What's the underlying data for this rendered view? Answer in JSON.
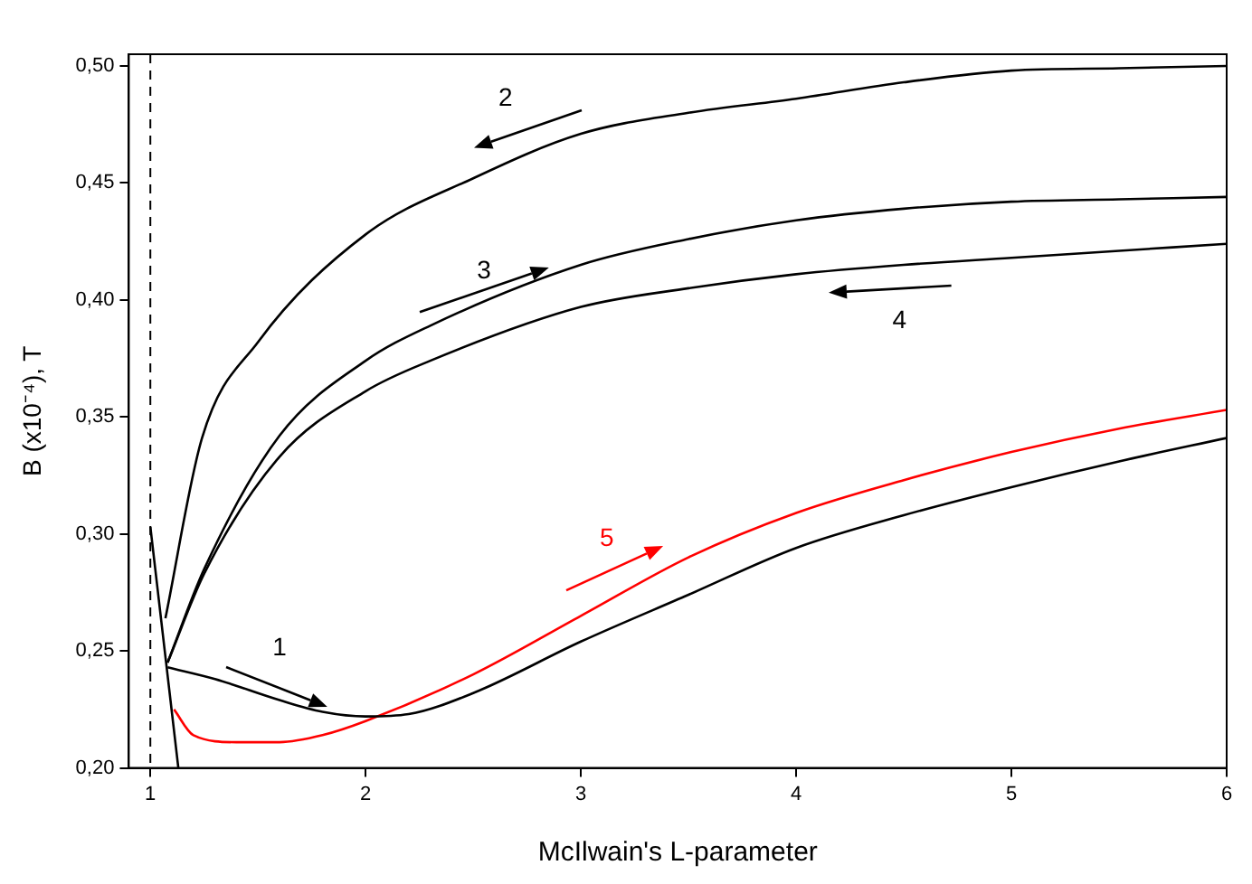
{
  "chart_data": {
    "type": "line",
    "xlabel": "McIlwain's L-parameter",
    "ylabel": "B (x10⁻⁴), T",
    "xlim": [
      0.9,
      6
    ],
    "xticks": [
      1,
      2,
      3,
      4,
      5,
      6
    ],
    "ylim": [
      0.2,
      0.505
    ],
    "yticks": [
      {
        "value": 0.2,
        "label": "0,20"
      },
      {
        "value": 0.25,
        "label": "0,25"
      },
      {
        "value": 0.3,
        "label": "0,30"
      },
      {
        "value": 0.35,
        "label": "0,35"
      },
      {
        "value": 0.4,
        "label": "0,40"
      },
      {
        "value": 0.45,
        "label": "0,45"
      },
      {
        "value": 0.5,
        "label": "0,50"
      }
    ],
    "grid": false,
    "legend": false,
    "marker": "none",
    "line_style": "solid",
    "annotations": [
      "1",
      "2",
      "3",
      "4",
      "5"
    ],
    "ref_lines": [
      {
        "axis": "x",
        "value": 1,
        "color": "#000000",
        "line_style": "dashed"
      }
    ],
    "series": [
      {
        "color": "#000000",
        "x": [
          1.08,
          1.3,
          1.6,
          1.8,
          2.0,
          2.2,
          2.5,
          3,
          3.5,
          4,
          4.5,
          5,
          5.5,
          6
        ],
        "values": [
          0.243,
          0.238,
          0.229,
          0.224,
          0.222,
          0.223,
          0.232,
          0.254,
          0.274,
          0.294,
          0.308,
          0.32,
          0.331,
          0.341
        ]
      },
      {
        "color": "#000000",
        "x": [
          1.07,
          1.24,
          1.5,
          2,
          2.5,
          3,
          3.5,
          4,
          4.5,
          5,
          5.5,
          6
        ],
        "values": [
          0.264,
          0.341,
          0.382,
          0.428,
          0.452,
          0.471,
          0.48,
          0.486,
          0.493,
          0.498,
          0.499,
          0.5
        ]
      },
      {
        "color": "#000000",
        "x": [
          1.08,
          1.25,
          1.6,
          2,
          2.3,
          3,
          3.5,
          4,
          4.5,
          5,
          5.5,
          6
        ],
        "values": [
          0.245,
          0.285,
          0.342,
          0.374,
          0.389,
          0.415,
          0.426,
          0.434,
          0.439,
          0.442,
          0.443,
          0.444
        ]
      },
      {
        "color": "#000000",
        "x": [
          1.08,
          1.25,
          1.6,
          2,
          2.3,
          3,
          3.5,
          4,
          4.5,
          5,
          5.5,
          6
        ],
        "values": [
          0.245,
          0.283,
          0.333,
          0.361,
          0.374,
          0.397,
          0.405,
          0.411,
          0.415,
          0.418,
          0.421,
          0.424
        ]
      },
      {
        "color": "#ff0000",
        "x": [
          1.11,
          1.2,
          1.4,
          1.6,
          1.8,
          2,
          2.5,
          3,
          3.5,
          4,
          4.5,
          5,
          5.5,
          6
        ],
        "values": [
          0.225,
          0.214,
          0.211,
          0.211,
          0.214,
          0.22,
          0.24,
          0.265,
          0.29,
          0.309,
          0.323,
          0.335,
          0.345,
          0.353
        ]
      },
      {
        "color": "#000000",
        "x": [
          1.0,
          1.13
        ],
        "values": [
          0.303,
          0.2
        ]
      }
    ]
  }
}
